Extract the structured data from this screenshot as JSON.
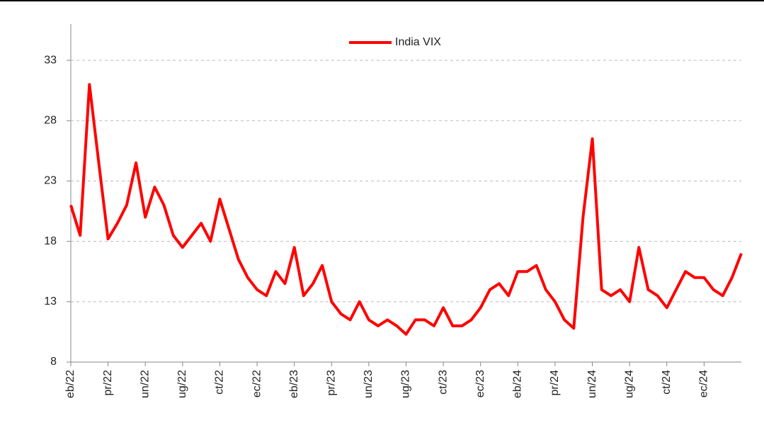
{
  "chart_data": {
    "type": "line",
    "categories": [
      "eb/22",
      null,
      null,
      null,
      "pr/22",
      null,
      null,
      null,
      "un/22",
      null,
      null,
      null,
      "ug/22",
      null,
      null,
      null,
      "ct/22",
      null,
      null,
      null,
      "ec/22",
      null,
      null,
      null,
      "eb/23",
      null,
      null,
      null,
      "pr/23",
      null,
      null,
      null,
      "un/23",
      null,
      null,
      null,
      "ug/23",
      null,
      null,
      null,
      "ct/23",
      null,
      null,
      null,
      "ec/23",
      null,
      null,
      null,
      "eb/24",
      null,
      null,
      null,
      "pr/24",
      null,
      null,
      null,
      "un/24",
      null,
      null,
      null,
      "ug/24",
      null,
      null,
      null,
      "ct/24",
      null,
      null,
      null,
      "ec/24",
      null,
      null,
      null,
      null
    ],
    "series": [
      {
        "name": "India VIX",
        "color": "#ff0000",
        "values": [
          21,
          18.5,
          31,
          24.5,
          18.2,
          19.5,
          21,
          24.5,
          20,
          22.5,
          21,
          18.5,
          17.5,
          18.5,
          19.5,
          18,
          21.5,
          19,
          16.5,
          15,
          14,
          13.5,
          15.5,
          14.5,
          17.5,
          13.5,
          14.5,
          16,
          13,
          12,
          11.5,
          13,
          11.5,
          11,
          11.5,
          11,
          10.3,
          11.5,
          11.5,
          11,
          12.5,
          11,
          11,
          11.5,
          12.5,
          14,
          14.5,
          13.5,
          15.5,
          15.5,
          16,
          14,
          13,
          11.5,
          10.8,
          20,
          26.5,
          14,
          13.5,
          14,
          13,
          17.5,
          14,
          13.5,
          12.5,
          14,
          15.5,
          15,
          15,
          14,
          13.5,
          15,
          17
        ]
      }
    ],
    "ylim": [
      8,
      36
    ],
    "yticks": [
      8,
      13,
      18,
      23,
      28,
      33
    ],
    "grid": true,
    "legend": "top"
  }
}
